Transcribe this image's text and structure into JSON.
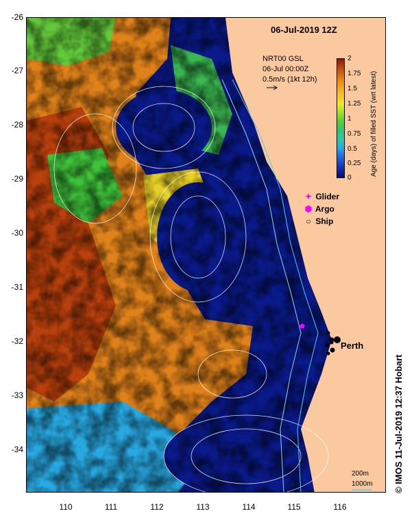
{
  "title": "06-Jul-2019 12Z",
  "legend": {
    "line1": "NRT00 GSL",
    "line2": "06-Jul 00:00Z",
    "line3": "0.5m/s (1kt 12h)",
    "arrow_icon": "arrow-right-icon"
  },
  "colorbar": {
    "label": "Age (days) of filled SST (wrt latest)",
    "ticks": [
      "2",
      "1.75",
      "1.5",
      "1.25",
      "1",
      "0.75",
      "0.5",
      "0.25",
      "0"
    ],
    "range": [
      0,
      2
    ]
  },
  "platforms": [
    {
      "symbol": "✦",
      "label": "Glider",
      "color": "#ff00ff"
    },
    {
      "symbol": "⬢",
      "label": "Argo",
      "color": "#ff00ff"
    },
    {
      "symbol": "○",
      "label": "Ship",
      "color": "#000000"
    }
  ],
  "city": "Perth",
  "depth_contours": [
    "200m",
    "1000m"
  ],
  "credit": "© IMOS 11-Jul-2019 12:37 Hobart",
  "axes": {
    "y_ticks": [
      "-26",
      "-27",
      "-28",
      "-29",
      "-30",
      "-31",
      "-32",
      "-33",
      "-34"
    ],
    "x_ticks": [
      "110",
      "111",
      "112",
      "113",
      "114",
      "115",
      "116"
    ],
    "lat_range": [
      -34.8,
      -26
    ],
    "lon_range": [
      109.2,
      117
    ]
  },
  "colors": {
    "land": "#fbc9a0",
    "ocean_recent": "#0a1a8a",
    "missing": "#ffffff"
  }
}
